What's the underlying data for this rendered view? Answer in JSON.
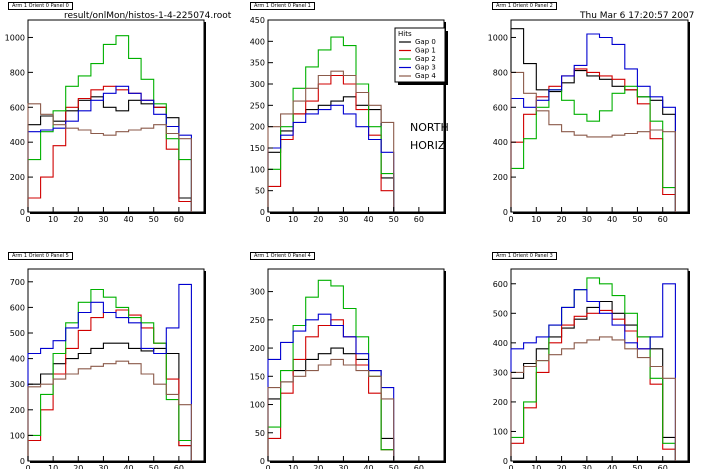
{
  "header": {
    "file": "result/onlMon/histos-1-4-225074.root",
    "date": "Thu Mar  6 17:20:57 2007"
  },
  "overlay": {
    "line1": "NORTH",
    "line2": "HORIZ"
  },
  "legend": {
    "title": "Hits",
    "entries": [
      "Gap 0",
      "Gap 1",
      "Gap 2",
      "Gap 3",
      "Gap 4"
    ]
  },
  "colors": [
    "#000000",
    "#d00000",
    "#00b000",
    "#0000d0",
    "#8b5a4a"
  ],
  "chart_data": [
    {
      "type": "line",
      "title": "Arm 1 Orient 0 Panel 0",
      "xlim": [
        0,
        70
      ],
      "ylim": [
        0,
        1100
      ],
      "x_ticks": [
        0,
        10,
        20,
        30,
        40,
        50,
        60
      ],
      "y_ticks": [
        0,
        200,
        400,
        600,
        800,
        1000
      ],
      "x_bins": [
        0,
        5,
        10,
        15,
        20,
        25,
        30,
        35,
        40,
        45,
        50,
        55,
        60
      ],
      "series": [
        {
          "name": "Gap 0",
          "values": [
            500,
            550,
            520,
            580,
            640,
            660,
            600,
            580,
            640,
            620,
            600,
            540,
            80
          ]
        },
        {
          "name": "Gap 1",
          "values": [
            80,
            200,
            380,
            600,
            650,
            700,
            720,
            700,
            680,
            640,
            600,
            360,
            60
          ]
        },
        {
          "name": "Gap 2",
          "values": [
            300,
            460,
            580,
            720,
            780,
            850,
            960,
            1010,
            880,
            760,
            620,
            420,
            300
          ]
        },
        {
          "name": "Gap 3",
          "values": [
            460,
            470,
            480,
            520,
            580,
            640,
            680,
            720,
            680,
            640,
            560,
            490,
            440
          ]
        },
        {
          "name": "Gap 4",
          "values": [
            620,
            560,
            500,
            480,
            470,
            450,
            440,
            460,
            470,
            480,
            500,
            450,
            420
          ]
        }
      ]
    },
    {
      "type": "line",
      "title": "Arm 1 Orient 0 Panel 1",
      "xlim": [
        0,
        70
      ],
      "ylim": [
        0,
        450
      ],
      "x_ticks": [
        0,
        10,
        20,
        30,
        40,
        50,
        60
      ],
      "y_ticks": [
        0,
        50,
        100,
        150,
        200,
        250,
        300,
        350,
        400,
        450
      ],
      "x_bins": [
        0,
        5,
        10,
        15,
        20,
        25,
        30,
        35,
        40,
        45
      ],
      "series": [
        {
          "name": "Gap 0",
          "values": [
            140,
            190,
            230,
            240,
            250,
            260,
            270,
            250,
            240,
            80
          ]
        },
        {
          "name": "Gap 1",
          "values": [
            60,
            170,
            230,
            260,
            300,
            320,
            300,
            240,
            180,
            50
          ]
        },
        {
          "name": "Gap 2",
          "values": [
            100,
            200,
            290,
            340,
            380,
            410,
            390,
            300,
            200,
            90
          ]
        },
        {
          "name": "Gap 3",
          "values": [
            150,
            180,
            210,
            230,
            240,
            250,
            230,
            200,
            170,
            140
          ]
        },
        {
          "name": "Gap 4",
          "values": [
            200,
            230,
            260,
            290,
            320,
            330,
            320,
            280,
            250,
            210
          ]
        }
      ]
    },
    {
      "type": "line",
      "title": "Arm 1 Orient 0 Panel 2",
      "xlim": [
        0,
        70
      ],
      "ylim": [
        0,
        1100
      ],
      "x_ticks": [
        0,
        10,
        20,
        30,
        40,
        50,
        60
      ],
      "y_ticks": [
        0,
        200,
        400,
        600,
        800,
        1000
      ],
      "x_bins": [
        0,
        5,
        10,
        15,
        20,
        25,
        30,
        35,
        40,
        45,
        50,
        55,
        60
      ],
      "series": [
        {
          "name": "Gap 0",
          "values": [
            1050,
            850,
            700,
            690,
            740,
            810,
            780,
            760,
            720,
            700,
            660,
            640,
            560
          ]
        },
        {
          "name": "Gap 1",
          "values": [
            400,
            560,
            660,
            720,
            780,
            820,
            800,
            780,
            760,
            700,
            620,
            420,
            100
          ]
        },
        {
          "name": "Gap 2",
          "values": [
            250,
            420,
            600,
            700,
            640,
            560,
            520,
            580,
            680,
            720,
            660,
            520,
            140
          ]
        },
        {
          "name": "Gap 3",
          "values": [
            650,
            600,
            640,
            700,
            780,
            840,
            1020,
            1000,
            960,
            820,
            720,
            660,
            600
          ]
        },
        {
          "name": "Gap 4",
          "values": [
            800,
            680,
            580,
            500,
            460,
            440,
            430,
            430,
            440,
            450,
            460,
            470,
            460
          ]
        }
      ]
    },
    {
      "type": "line",
      "title": "Arm 1 Orient 0 Panel 5",
      "xlim": [
        0,
        70
      ],
      "ylim": [
        0,
        750
      ],
      "x_ticks": [
        0,
        10,
        20,
        30,
        40,
        50,
        60
      ],
      "y_ticks": [
        0,
        100,
        200,
        300,
        400,
        500,
        600,
        700
      ],
      "x_bins": [
        0,
        5,
        10,
        15,
        20,
        25,
        30,
        35,
        40,
        45,
        50,
        55,
        60
      ],
      "series": [
        {
          "name": "Gap 0",
          "values": [
            300,
            340,
            380,
            400,
            420,
            440,
            460,
            460,
            440,
            430,
            440,
            420,
            60
          ]
        },
        {
          "name": "Gap 1",
          "values": [
            80,
            200,
            340,
            440,
            510,
            560,
            580,
            590,
            570,
            520,
            460,
            320,
            60
          ]
        },
        {
          "name": "Gap 2",
          "values": [
            100,
            260,
            420,
            540,
            620,
            670,
            640,
            600,
            560,
            540,
            460,
            240,
            80
          ]
        },
        {
          "name": "Gap 3",
          "values": [
            420,
            440,
            470,
            520,
            580,
            620,
            580,
            560,
            540,
            440,
            420,
            520,
            690
          ]
        },
        {
          "name": "Gap 4",
          "values": [
            290,
            300,
            320,
            340,
            360,
            370,
            380,
            390,
            380,
            340,
            300,
            260,
            220
          ]
        }
      ]
    },
    {
      "type": "line",
      "title": "Arm 1 Orient 0 Panel 4",
      "xlim": [
        0,
        70
      ],
      "ylim": [
        0,
        340
      ],
      "x_ticks": [
        0,
        10,
        20,
        30,
        40,
        50,
        60
      ],
      "y_ticks": [
        0,
        50,
        100,
        150,
        200,
        250,
        300
      ],
      "x_bins": [
        0,
        5,
        10,
        15,
        20,
        25,
        30,
        35,
        40,
        45
      ],
      "series": [
        {
          "name": "Gap 0",
          "values": [
            110,
            140,
            160,
            180,
            190,
            200,
            190,
            180,
            160,
            40
          ]
        },
        {
          "name": "Gap 1",
          "values": [
            40,
            120,
            180,
            220,
            240,
            250,
            220,
            170,
            120,
            20
          ]
        },
        {
          "name": "Gap 2",
          "values": [
            60,
            160,
            240,
            290,
            320,
            310,
            270,
            220,
            150,
            20
          ]
        },
        {
          "name": "Gap 3",
          "values": [
            180,
            210,
            230,
            250,
            260,
            240,
            220,
            190,
            160,
            130
          ]
        },
        {
          "name": "Gap 4",
          "values": [
            130,
            140,
            150,
            160,
            170,
            180,
            170,
            160,
            150,
            110
          ]
        }
      ]
    },
    {
      "type": "line",
      "title": "Arm 1 Orient 0 Panel 3",
      "xlim": [
        0,
        70
      ],
      "ylim": [
        0,
        650
      ],
      "x_ticks": [
        0,
        10,
        20,
        30,
        40,
        50,
        60
      ],
      "y_ticks": [
        0,
        100,
        200,
        300,
        400,
        500,
        600
      ],
      "x_bins": [
        0,
        5,
        10,
        15,
        20,
        25,
        30,
        35,
        40,
        45,
        50,
        55,
        60
      ],
      "series": [
        {
          "name": "Gap 0",
          "values": [
            280,
            330,
            380,
            420,
            450,
            480,
            520,
            540,
            500,
            460,
            420,
            380,
            80
          ]
        },
        {
          "name": "Gap 1",
          "values": [
            60,
            180,
            300,
            400,
            460,
            490,
            500,
            510,
            480,
            440,
            380,
            260,
            40
          ]
        },
        {
          "name": "Gap 2",
          "values": [
            80,
            200,
            340,
            460,
            520,
            580,
            620,
            600,
            560,
            500,
            420,
            280,
            60
          ]
        },
        {
          "name": "Gap 3",
          "values": [
            380,
            400,
            420,
            460,
            520,
            580,
            540,
            500,
            460,
            400,
            380,
            420,
            600
          ]
        },
        {
          "name": "Gap 4",
          "values": [
            300,
            320,
            340,
            360,
            380,
            400,
            410,
            420,
            410,
            380,
            350,
            320,
            280
          ]
        }
      ]
    }
  ]
}
